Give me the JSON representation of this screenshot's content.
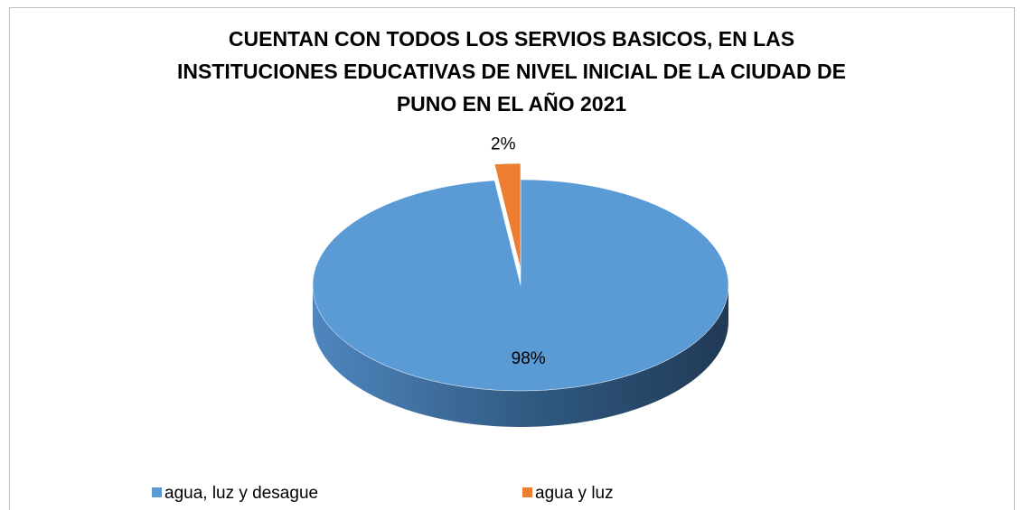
{
  "chart_data": {
    "type": "pie",
    "title": [
      "CUENTAN CON TODOS LOS SERVIOS BASICOS,  EN LAS",
      "INSTITUCIONES EDUCATIVAS DE NIVEL INICIAL DE LA CIUDAD DE",
      "PUNO EN EL AÑO 2021"
    ],
    "categories": [
      "agua, luz  y desague",
      "agua y luz"
    ],
    "values": [
      98,
      2
    ],
    "value_labels": [
      "98%",
      "2%"
    ],
    "colors": [
      "#5b9bd5",
      "#ed7d31"
    ],
    "legend": "bottom"
  }
}
